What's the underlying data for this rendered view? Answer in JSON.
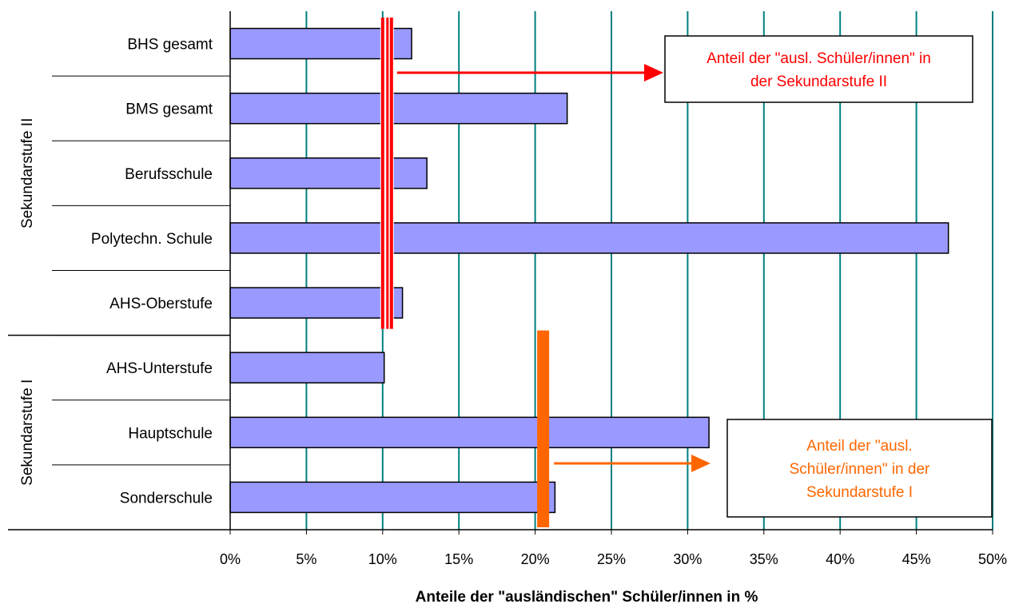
{
  "chart_data": {
    "type": "bar",
    "orientation": "horizontal",
    "categories": [
      "BHS gesamt",
      "BMS gesamt",
      "Berufsschule",
      "Polytechn. Schule",
      "AHS-Oberstufe",
      "AHS-Unterstufe",
      "Hauptschule",
      "Sonderschule"
    ],
    "values": [
      0.119,
      0.221,
      0.129,
      0.471,
      0.113,
      0.101,
      0.314,
      0.213
    ],
    "tick_labels": [
      "0%",
      "5%",
      "10%",
      "15%",
      "20%",
      "25%",
      "30%",
      "35%",
      "40%",
      "45%",
      "50%"
    ],
    "xlim": [
      0,
      0.5
    ],
    "xlabel": "Anteile der \"ausländischen\" Schüler/innen in %",
    "grid": "vertical",
    "bar_color": "#9999ff",
    "grid_color": "#008080",
    "groups": [
      {
        "label": "Sekundarstufe II",
        "categories": [
          "BHS gesamt",
          "BMS gesamt",
          "Berufsschule",
          "Polytechn. Schule",
          "AHS-Oberstufe"
        ]
      },
      {
        "label": "Sekundarstufe I",
        "categories": [
          "AHS-Unterstufe",
          "Hauptschule",
          "Sonderschule"
        ]
      }
    ],
    "reference_lines": [
      {
        "value": 0.1,
        "color": "#ff0000",
        "group": "Sekundarstufe II",
        "annotation": [
          "Anteil der \"ausl. Schüler/innen\" in",
          "der Sekundarstufe II"
        ]
      },
      {
        "value": 0.205,
        "color": "#ff6600",
        "group": "Sekundarstufe I",
        "annotation": [
          "Anteil der \"ausl.",
          "Schüler/innen\" in der",
          "Sekundarstufe I"
        ]
      }
    ]
  }
}
